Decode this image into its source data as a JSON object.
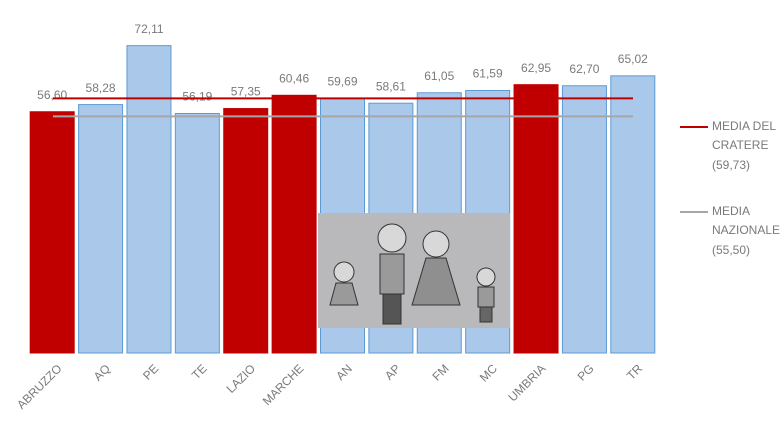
{
  "chart_data": {
    "type": "bar",
    "categories": [
      "ABRUZZO",
      "AQ",
      "PE",
      "TE",
      "LAZIO",
      "MARCHE",
      "AN",
      "AP",
      "FM",
      "MC",
      "UMBRIA",
      "PG",
      "TR"
    ],
    "values": [
      56.6,
      58.28,
      72.11,
      56.19,
      57.35,
      60.46,
      59.69,
      58.61,
      61.05,
      61.59,
      62.95,
      62.7,
      65.02
    ],
    "value_labels": [
      "56,60",
      "58,28",
      "72,11",
      "56,19",
      "57,35",
      "60,46",
      "59,69",
      "58,61",
      "61,05",
      "61,59",
      "62,95",
      "62,70",
      "65,02"
    ],
    "colors": [
      "#c00000",
      "#a9c8ea",
      "#a9c8ea",
      "#a9c8ea",
      "#c00000",
      "#c00000",
      "#a9c8ea",
      "#a9c8ea",
      "#a9c8ea",
      "#a9c8ea",
      "#c00000",
      "#a9c8ea",
      "#a9c8ea"
    ],
    "ylim": [
      0,
      80
    ],
    "reference_lines": [
      {
        "name": "MEDIA DEL CRATERE",
        "value": 59.73,
        "value_label": "(59,73)",
        "color": "#c00000"
      },
      {
        "name": "MEDIA NAZIONALE",
        "value": 55.5,
        "value_label": "(55,50)",
        "color": "#a6a6a6"
      }
    ]
  }
}
